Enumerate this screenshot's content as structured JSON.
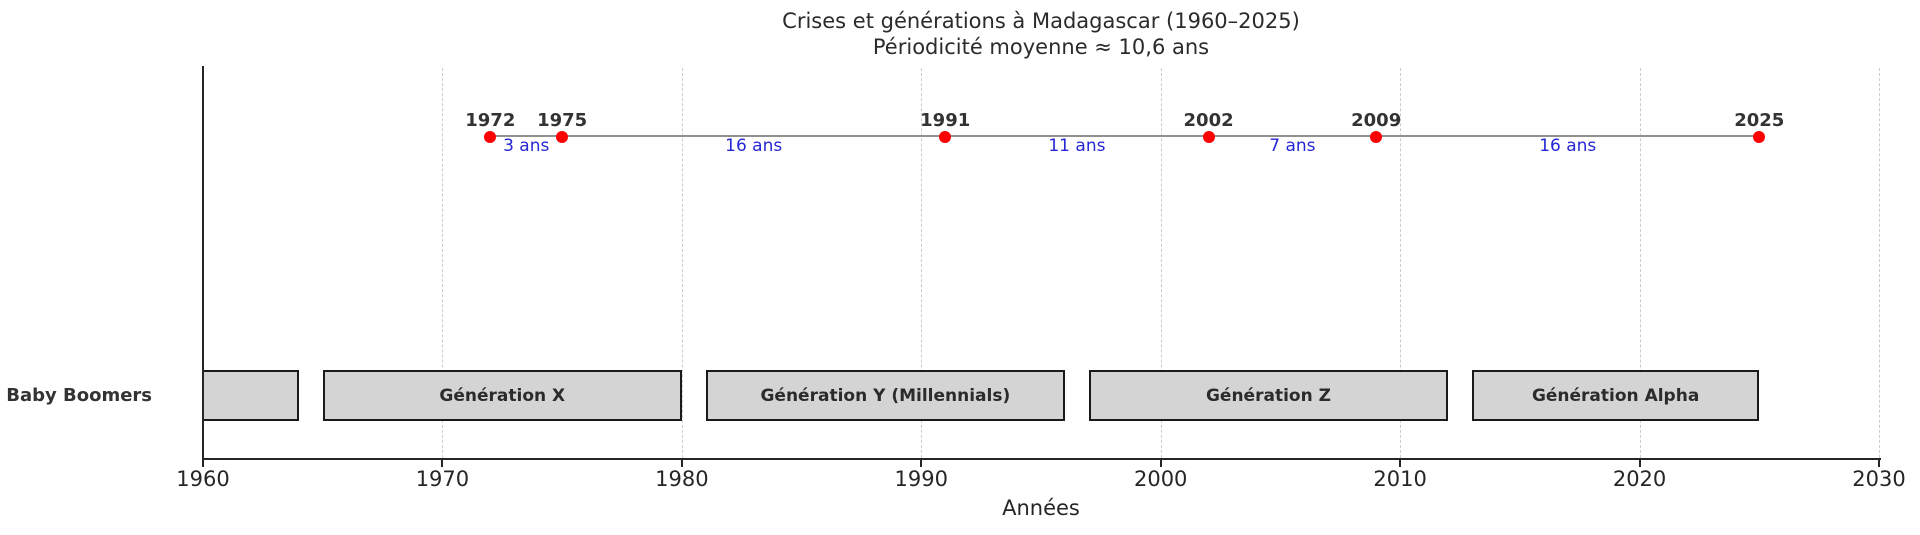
{
  "chart_data": {
    "type": "scatter",
    "title": "Crises et générations à Madagascar (1960–2025)",
    "subtitle": "Périodicité moyenne ≈ 10,6 ans",
    "xlabel": "Années",
    "xlim": [
      1960,
      2030
    ],
    "x_ticks": [
      "1960",
      "1970",
      "1980",
      "1990",
      "2000",
      "2010",
      "2020",
      "2030"
    ],
    "grid": "vertical-dashed-light-gray",
    "legend": "none",
    "crisis_marker_color": "#ff0000",
    "timeline_line_color": "#909090",
    "interval_label_color": "#2626d6",
    "crises_years": [
      "1972",
      "1975",
      "1991",
      "2002",
      "2009",
      "2025"
    ],
    "intervals": [
      {
        "label": "3 ans",
        "from": 1972,
        "to": 1975
      },
      {
        "label": "16 ans",
        "from": 1975,
        "to": 1991
      },
      {
        "label": "11 ans",
        "from": 1991,
        "to": 2002
      },
      {
        "label": "7 ans",
        "from": 2002,
        "to": 2009
      },
      {
        "label": "16 ans",
        "from": 2009,
        "to": 2025
      }
    ],
    "generations": [
      {
        "label": "Baby Boomers",
        "start": 1960,
        "end": 1964,
        "label_position": "outside-left",
        "clipped_left": true
      },
      {
        "label": "Génération X",
        "start": 1965,
        "end": 1980,
        "label_position": "inside"
      },
      {
        "label": "Génération Y (Millennials)",
        "start": 1981,
        "end": 1996,
        "label_position": "inside"
      },
      {
        "label": "Génération Z",
        "start": 1997,
        "end": 2012,
        "label_position": "inside"
      },
      {
        "label": "Génération Alpha",
        "start": 2013,
        "end": 2025,
        "label_position": "inside"
      }
    ],
    "bar_fill_color": "#d4d4d4",
    "bar_border_color": "#1a1a1a"
  }
}
